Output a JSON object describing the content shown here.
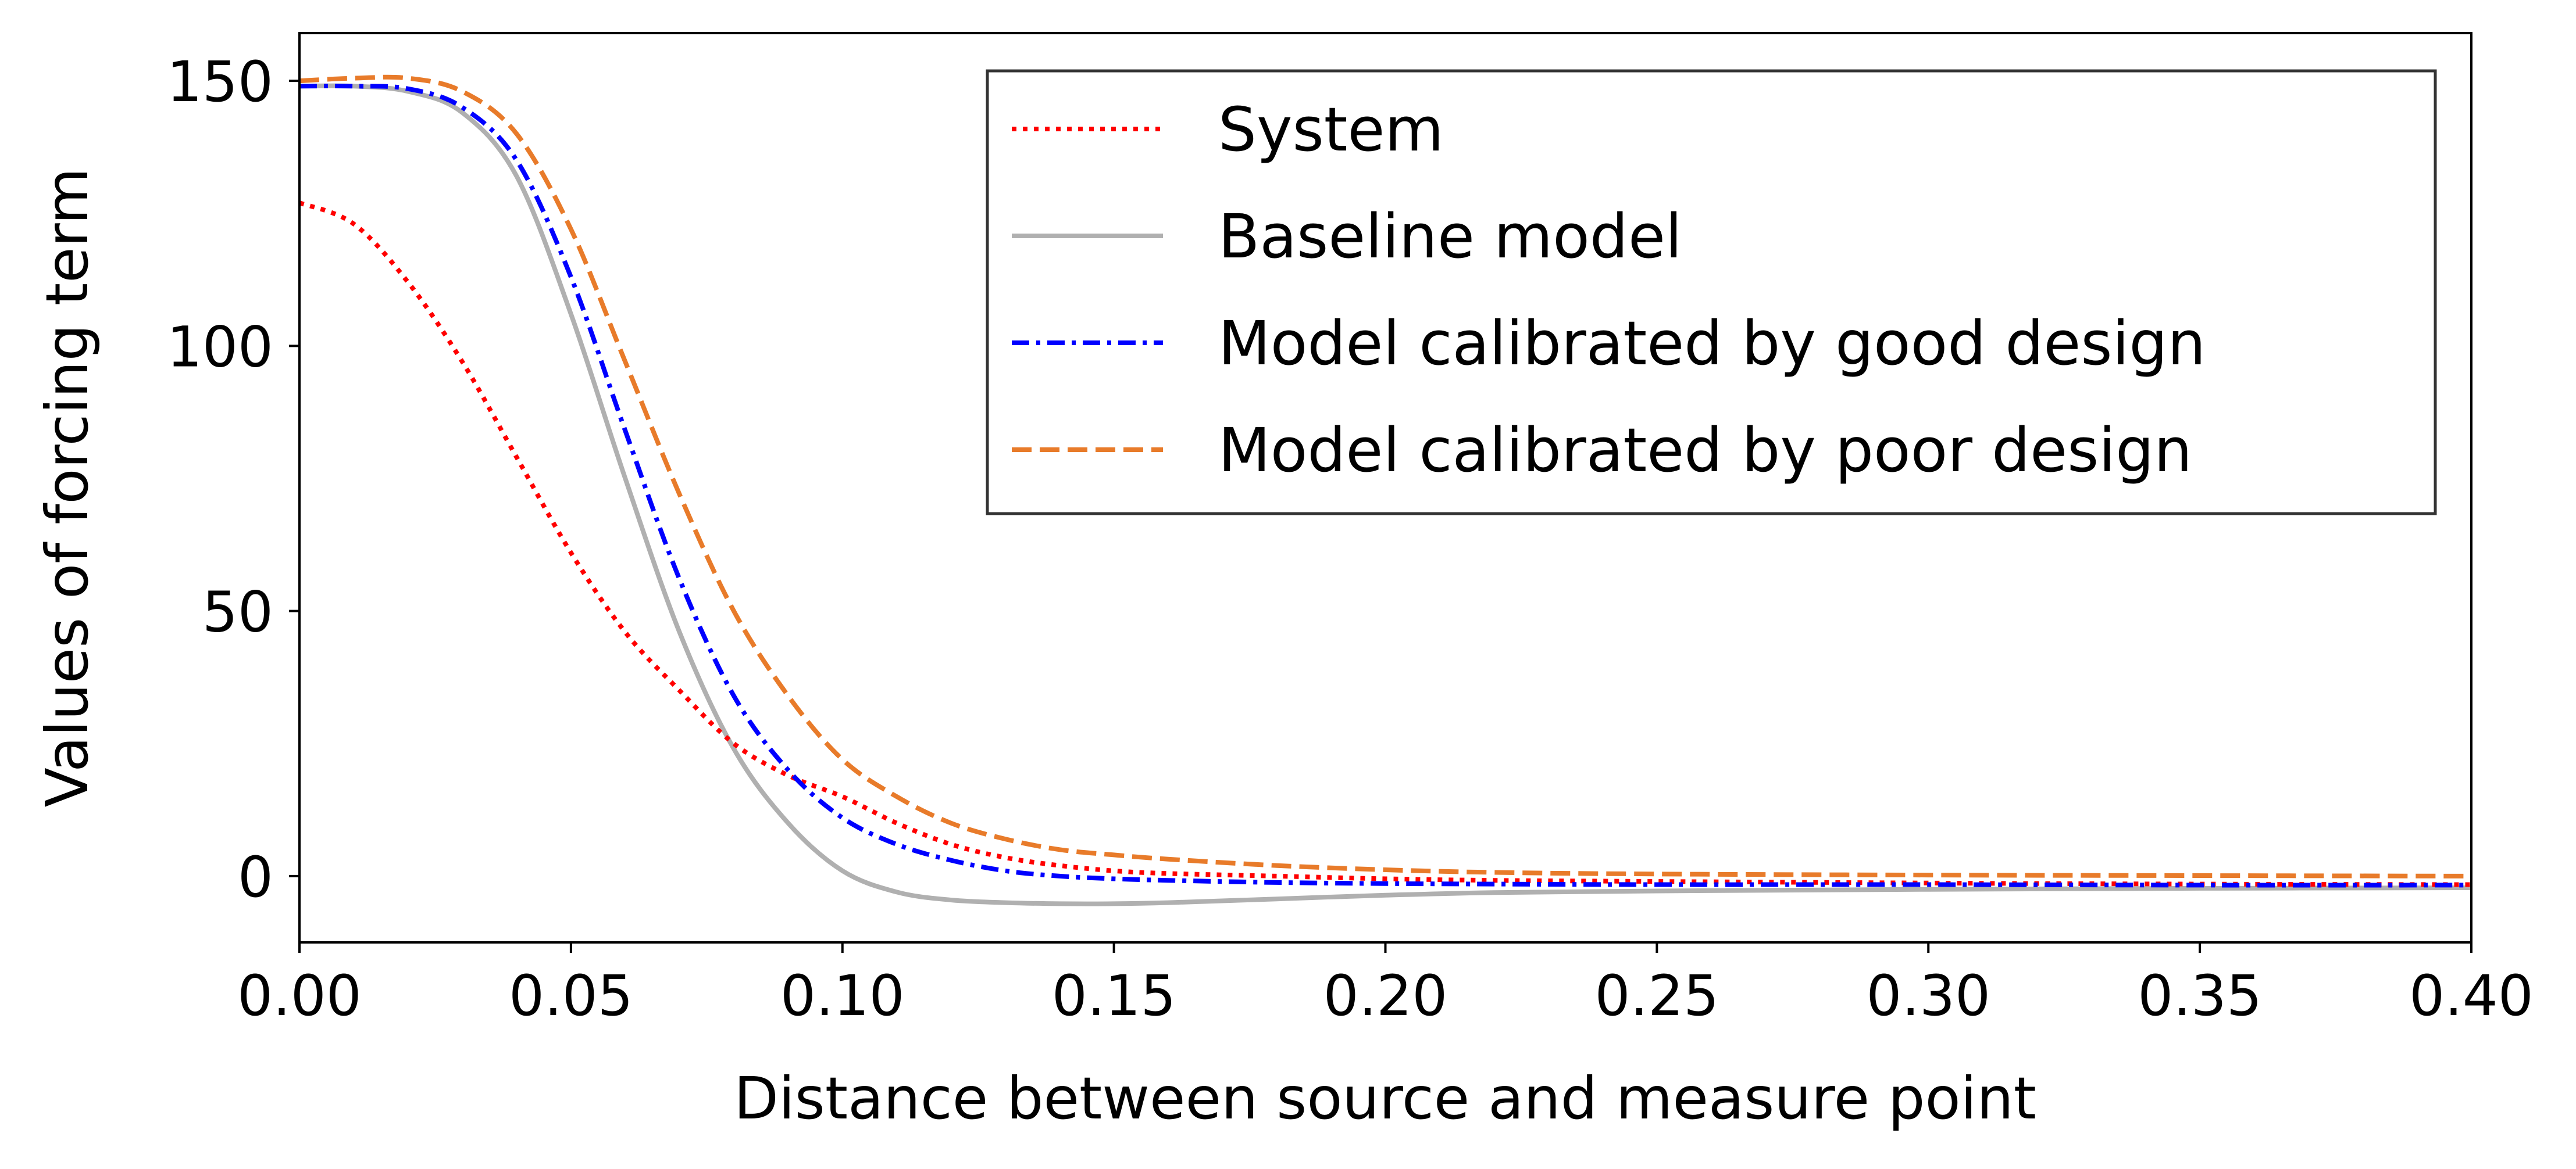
{
  "chart_data": {
    "type": "line",
    "title": "",
    "xlabel": "Distance between source and measure point",
    "ylabel": "Values of forcing term",
    "xlim": [
      0.0,
      0.4
    ],
    "ylim": [
      -12.5,
      159
    ],
    "xticks": [
      0.0,
      0.05,
      0.1,
      0.15,
      0.2,
      0.25,
      0.3,
      0.35,
      0.4
    ],
    "xtick_labels": [
      "0.00",
      "0.05",
      "0.10",
      "0.15",
      "0.20",
      "0.25",
      "0.30",
      "0.35",
      "0.40"
    ],
    "yticks": [
      0,
      50,
      100,
      150
    ],
    "ytick_labels": [
      "0",
      "50",
      "100",
      "150"
    ],
    "grid": false,
    "legend_position": "top-right",
    "x": [
      0.0,
      0.01,
      0.02,
      0.03,
      0.04,
      0.05,
      0.06,
      0.07,
      0.08,
      0.09,
      0.1,
      0.11,
      0.12,
      0.13,
      0.14,
      0.15,
      0.16,
      0.18,
      0.2,
      0.22,
      0.25,
      0.3,
      0.35,
      0.4
    ],
    "series": [
      {
        "name": "System",
        "color": "#ff0000",
        "style": "dotted",
        "values": [
          127,
          123,
          112,
          97,
          79,
          61,
          46,
          35,
          25,
          19,
          15,
          10,
          6,
          3.5,
          2,
          1,
          0.5,
          0,
          -0.5,
          -0.8,
          -1,
          -1.3,
          -1.5,
          -1.6
        ]
      },
      {
        "name": "Baseline model",
        "color": "#b0b0b0",
        "style": "solid",
        "values": [
          149,
          149,
          148,
          144,
          132,
          106,
          75,
          46,
          24,
          10,
          1,
          -3,
          -4.5,
          -5,
          -5.2,
          -5.2,
          -5,
          -4.3,
          -3.6,
          -3.1,
          -2.8,
          -2.5,
          -2.3,
          -2.2
        ]
      },
      {
        "name": "Model calibrated by good design",
        "color": "#0000ff",
        "style": "dashdot",
        "values": [
          149,
          149,
          148.5,
          145,
          135,
          113,
          84,
          56,
          34,
          20,
          11,
          6,
          3,
          1,
          0,
          -0.5,
          -0.8,
          -1.2,
          -1.4,
          -1.5,
          -1.6,
          -1.6,
          -1.7,
          -1.7
        ]
      },
      {
        "name": "Model calibrated by poor design",
        "color": "#e87b2a",
        "style": "dashed",
        "values": [
          150,
          150.5,
          150.5,
          148,
          140,
          122,
          97,
          72,
          50,
          34,
          22,
          15,
          10,
          7,
          5,
          4,
          3.2,
          2,
          1.2,
          0.7,
          0.4,
          0.2,
          0.1,
          0
        ]
      }
    ]
  }
}
